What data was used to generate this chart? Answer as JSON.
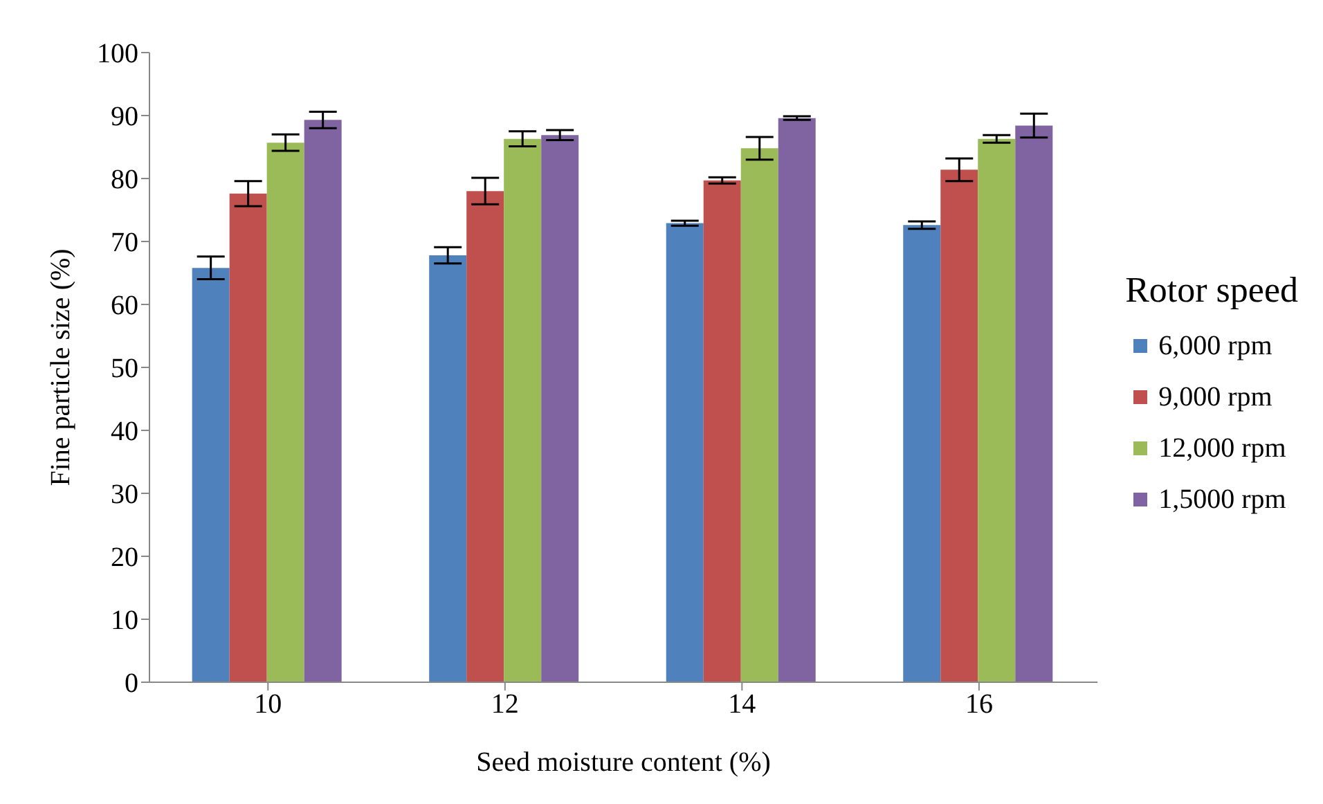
{
  "chart_data": {
    "type": "bar",
    "xlabel": "Seed moisture content (%)",
    "ylabel": "Fine particle size (%)",
    "legend_title": "Rotor speed",
    "categories": [
      "10",
      "12",
      "14",
      "16"
    ],
    "series": [
      {
        "name": "6,000 rpm",
        "color": "#4f81bd",
        "values": [
          65.8,
          67.8,
          72.9,
          72.6
        ],
        "errors": [
          1.8,
          1.3,
          0.4,
          0.6
        ]
      },
      {
        "name": "9,000 rpm",
        "color": "#c0504d",
        "values": [
          77.6,
          78.0,
          79.7,
          81.4
        ],
        "errors": [
          2.0,
          2.1,
          0.5,
          1.8
        ]
      },
      {
        "name": "12,000 rpm",
        "color": "#9bbb59",
        "values": [
          85.7,
          86.3,
          84.8,
          86.3
        ],
        "errors": [
          1.3,
          1.2,
          1.8,
          0.6
        ]
      },
      {
        "name": "1,5000 rpm",
        "color": "#8064a2",
        "values": [
          89.3,
          86.9,
          89.6,
          88.4
        ],
        "errors": [
          1.3,
          0.8,
          0.3,
          1.9
        ]
      }
    ],
    "ylim": [
      0,
      100
    ],
    "yticks": [
      0,
      10,
      20,
      30,
      40,
      50,
      60,
      70,
      80,
      90,
      100
    ],
    "legend": "right",
    "grid": false
  }
}
